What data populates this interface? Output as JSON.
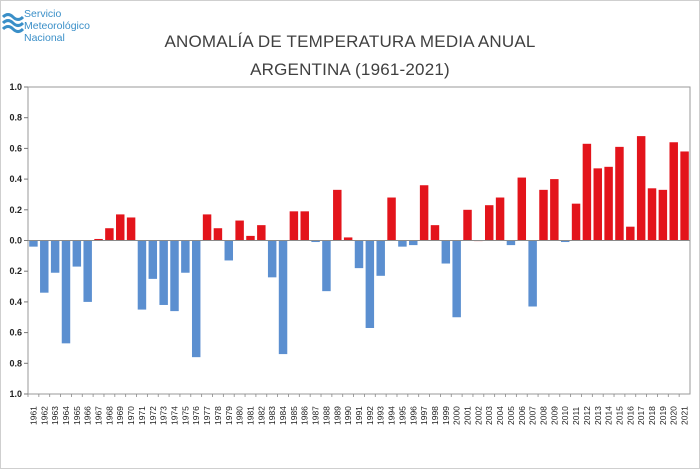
{
  "logo": {
    "lines": [
      "Servicio",
      "Meteorológico",
      "Nacional"
    ]
  },
  "chart_data": {
    "type": "bar",
    "title": "ANOMALÍA DE TEMPERATURA MEDIA ANUAL",
    "subtitle": "ARGENTINA (1961-2021)",
    "xlabel": "",
    "ylabel": "",
    "ylim": [
      -1.0,
      1.0
    ],
    "y_ticks": [
      "1.0",
      "0.8",
      "0.6",
      "0.4",
      "0.2",
      "0.0",
      "0.2",
      "0.4",
      "0.6",
      "0.8",
      "1.0"
    ],
    "grid": false,
    "colors": {
      "positive": "#e3141b",
      "negative": "#5b8fd0"
    },
    "categories": [
      "1961",
      "1962",
      "1963",
      "1964",
      "1965",
      "1966",
      "1967",
      "1968",
      "1969",
      "1970",
      "1971",
      "1972",
      "1973",
      "1974",
      "1975",
      "1976",
      "1977",
      "1978",
      "1979",
      "1980",
      "1981",
      "1982",
      "1983",
      "1984",
      "1985",
      "1986",
      "1987",
      "1988",
      "1989",
      "1990",
      "1991",
      "1992",
      "1993",
      "1994",
      "1995",
      "1996",
      "1997",
      "1998",
      "1999",
      "2000",
      "2001",
      "2002",
      "2003",
      "2004",
      "2005",
      "2006",
      "2007",
      "2008",
      "2009",
      "2010",
      "2011",
      "2012",
      "2013",
      "2014",
      "2015",
      "2016",
      "2017",
      "2018",
      "2019",
      "2020",
      "2021"
    ],
    "values": [
      -0.04,
      -0.34,
      -0.21,
      -0.67,
      -0.17,
      -0.4,
      0.01,
      0.08,
      0.17,
      0.15,
      -0.45,
      -0.25,
      -0.42,
      -0.46,
      -0.21,
      -0.76,
      0.17,
      0.08,
      -0.13,
      0.13,
      0.03,
      0.1,
      -0.24,
      -0.74,
      0.19,
      0.19,
      -0.01,
      -0.33,
      0.33,
      0.02,
      -0.18,
      -0.57,
      -0.23,
      0.28,
      -0.04,
      -0.03,
      0.36,
      0.1,
      -0.15,
      -0.5,
      0.2,
      0.0,
      0.23,
      0.28,
      -0.03,
      0.41,
      -0.43,
      0.33,
      0.4,
      -0.01,
      0.24,
      0.63,
      0.47,
      0.48,
      0.61,
      0.09,
      0.68,
      0.34,
      0.33,
      0.64,
      0.58
    ]
  }
}
